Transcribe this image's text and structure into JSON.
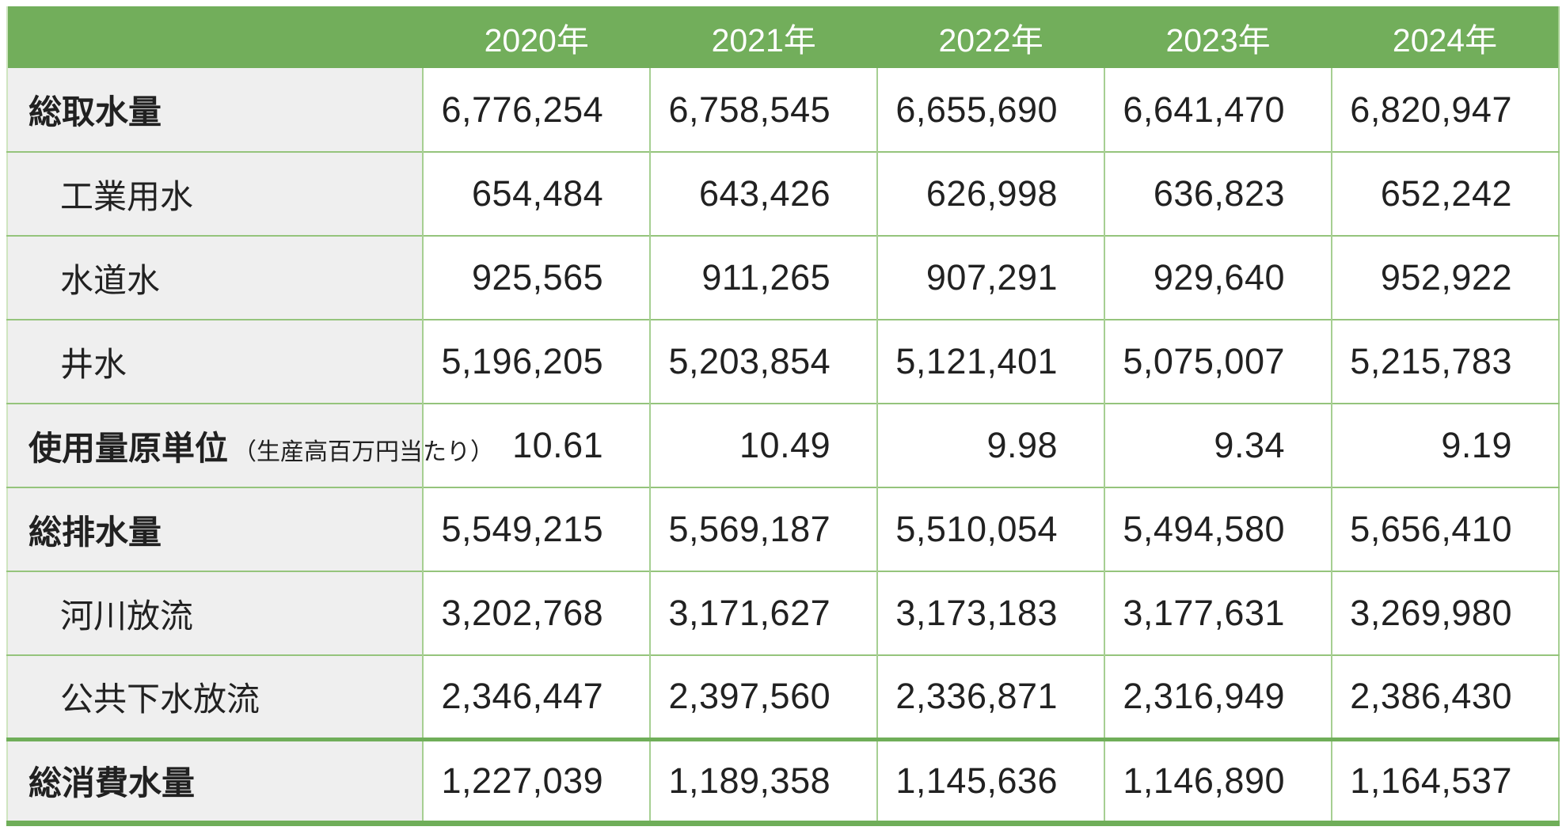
{
  "chart_data": {
    "type": "table",
    "title": "",
    "columns": [
      "2020年",
      "2021年",
      "2022年",
      "2023年",
      "2024年"
    ],
    "rows": [
      {
        "label": "総取水量",
        "note": "",
        "emphasis": "bold",
        "indent": false,
        "values": [
          "6,776,254",
          "6,758,545",
          "6,655,690",
          "6,641,470",
          "6,820,947"
        ]
      },
      {
        "label": "工業用水",
        "note": "",
        "emphasis": "normal",
        "indent": true,
        "values": [
          "654,484",
          "643,426",
          "626,998",
          "636,823",
          "652,242"
        ]
      },
      {
        "label": "水道水",
        "note": "",
        "emphasis": "normal",
        "indent": true,
        "values": [
          "925,565",
          "911,265",
          "907,291",
          "929,640",
          "952,922"
        ]
      },
      {
        "label": "井水",
        "note": "",
        "emphasis": "normal",
        "indent": true,
        "values": [
          "5,196,205",
          "5,203,854",
          "5,121,401",
          "5,075,007",
          "5,215,783"
        ]
      },
      {
        "label": "使用量原単位",
        "note": "（生産高百万円当たり）",
        "emphasis": "bold",
        "indent": false,
        "values": [
          "10.61",
          "10.49",
          "9.98",
          "9.34",
          "9.19"
        ]
      },
      {
        "label": "総排水量",
        "note": "",
        "emphasis": "bold",
        "indent": false,
        "values": [
          "5,549,215",
          "5,569,187",
          "5,510,054",
          "5,494,580",
          "5,656,410"
        ]
      },
      {
        "label": "河川放流",
        "note": "",
        "emphasis": "normal",
        "indent": true,
        "values": [
          "3,202,768",
          "3,171,627",
          "3,173,183",
          "3,177,631",
          "3,269,980"
        ]
      },
      {
        "label": "公共下水放流",
        "note": "",
        "emphasis": "normal",
        "indent": true,
        "values": [
          "2,346,447",
          "2,397,560",
          "2,336,871",
          "2,316,949",
          "2,386,430"
        ]
      },
      {
        "label": "総消費水量",
        "note": "",
        "emphasis": "bold-total",
        "indent": false,
        "values": [
          "1,227,039",
          "1,189,358",
          "1,145,636",
          "1,146,890",
          "1,164,537"
        ]
      }
    ],
    "layout": {
      "grid": true,
      "header_position": "top",
      "value_alignment": "right"
    },
    "colors": {
      "header_bg": "#72ae5b",
      "header_text": "#ffffff",
      "label_bg": "#efefef",
      "grid_line": "#95c47c",
      "column_line": "#a6cf92",
      "accent_thick_line": "#6fae59",
      "body_text": "#212121"
    }
  }
}
